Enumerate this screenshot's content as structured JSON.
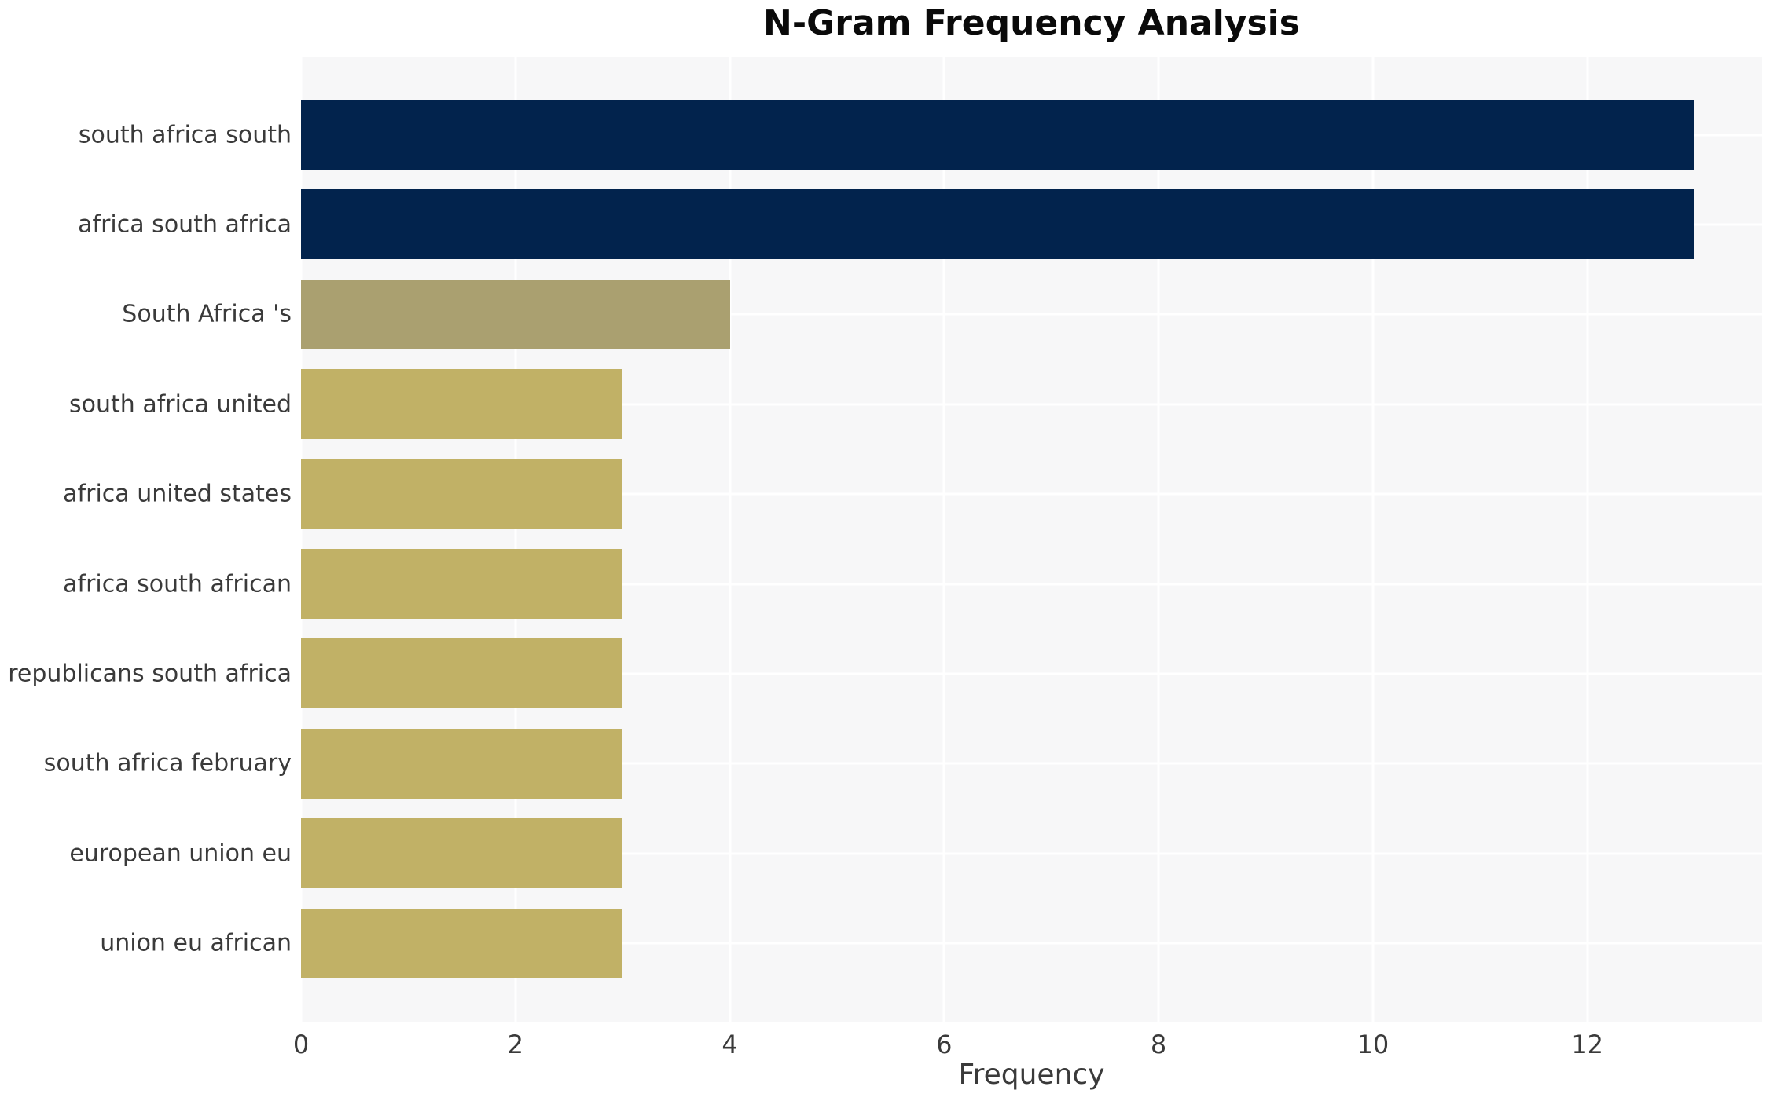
{
  "chart_data": {
    "type": "bar",
    "orientation": "horizontal",
    "title": "N-Gram Frequency Analysis",
    "xlabel": "Frequency",
    "ylabel": "",
    "categories": [
      "south africa south",
      "africa south africa",
      "South Africa 's",
      "south africa united",
      "africa united states",
      "africa south african",
      "republicans south africa",
      "south africa february",
      "european union eu",
      "union eu african"
    ],
    "values": [
      13,
      13,
      4,
      3,
      3,
      3,
      3,
      3,
      3,
      3
    ],
    "bar_colors": [
      "#02234d",
      "#02234d",
      "#aaa070",
      "#c1b166",
      "#c1b166",
      "#c1b166",
      "#c1b166",
      "#c1b166",
      "#c1b166",
      "#c1b166"
    ],
    "xticks": [
      0,
      2,
      4,
      6,
      8,
      10,
      12
    ],
    "xlim": [
      0,
      13.63
    ],
    "grid": true,
    "legend": "none",
    "colors": {
      "plot_background": "#f7f7f8",
      "grid_color": "#ffffff",
      "text_color": "#3a3a3a",
      "title_color": "#0a0a0a",
      "bar_primary": "#02234d",
      "bar_secondary": "#aaa070",
      "bar_tertiary": "#c1b166"
    }
  }
}
